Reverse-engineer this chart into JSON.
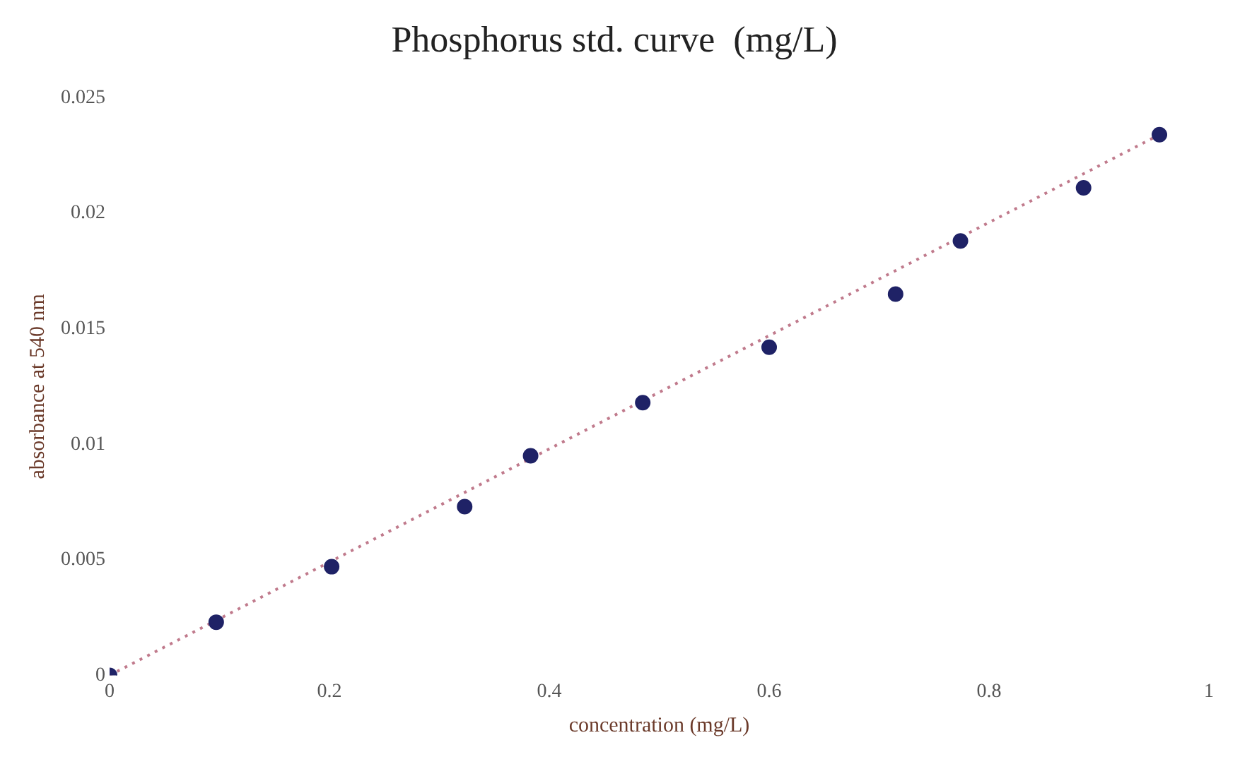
{
  "chart_data": {
    "type": "scatter",
    "title": "Phosphorus std. curve  (mg/L)",
    "xlabel": "concentration (mg/L)",
    "ylabel": "absorbance at 540 nm",
    "xlim": [
      0,
      1
    ],
    "xticks": [
      0,
      0.2,
      0.4,
      0.6,
      0.8,
      1
    ],
    "ylim": [
      0,
      0.025
    ],
    "yticks": [
      0,
      0.005,
      0.01,
      0.015,
      0.02,
      0.025
    ],
    "grid": false,
    "legend": false,
    "marker": "circle",
    "series": [
      {
        "color": "#1f2266",
        "x": [
          0,
          0.097,
          0.202,
          0.323,
          0.383,
          0.485,
          0.6,
          0.715,
          0.774,
          0.886,
          0.955
        ],
        "values": [
          0,
          0.0023,
          0.0047,
          0.0073,
          0.0095,
          0.0118,
          0.0142,
          0.0165,
          0.0188,
          0.0211,
          0.0234
        ]
      },
      {
        "type": "line",
        "color": "#c07a8c",
        "line_style": "dotted",
        "marker": "none",
        "x": [
          0,
          0.955
        ],
        "values": [
          0,
          0.0234
        ]
      }
    ]
  }
}
